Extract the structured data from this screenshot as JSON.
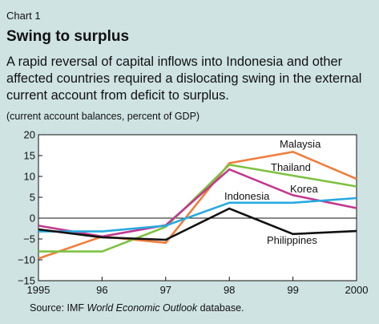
{
  "header": {
    "chart_number": "Chart 1",
    "title": "Swing to surplus",
    "subtitle": "A rapid reversal of capital inflows into Indonesia and other affected countries required a dislocating swing in the external current account from deficit to surplus.",
    "units": "(current account balances, percent of GDP)"
  },
  "source": {
    "prefix": "Source: IMF ",
    "publication": "World Economic Outlook",
    "suffix": " database."
  },
  "chart_data": {
    "type": "line",
    "title": "Swing to surplus",
    "ylabel": "(current account balances, percent of GDP)",
    "xlabel": "",
    "x": [
      "1995",
      "96",
      "97",
      "98",
      "99",
      "2000"
    ],
    "ylim": [
      -15,
      20
    ],
    "yticks": [
      -15,
      -10,
      -5,
      0,
      5,
      10,
      15,
      20
    ],
    "grid": false,
    "series": [
      {
        "name": "Malaysia",
        "color": "#f07d3c",
        "values": [
          -9.7,
          -4.4,
          -5.9,
          13.2,
          15.9,
          9.4
        ]
      },
      {
        "name": "Thailand",
        "color": "#7dc242",
        "values": [
          -8.0,
          -8.0,
          -2.1,
          12.8,
          10.2,
          7.6
        ]
      },
      {
        "name": "Korea",
        "color": "#c1388e",
        "values": [
          -1.8,
          -4.4,
          -1.7,
          11.7,
          5.5,
          2.4
        ]
      },
      {
        "name": "Indonesia",
        "color": "#27a9e1",
        "values": [
          -3.2,
          -3.2,
          -1.8,
          3.7,
          3.7,
          4.8
        ]
      },
      {
        "name": "Philippines",
        "color": "#111111",
        "values": [
          -2.7,
          -4.6,
          -5.2,
          2.3,
          -3.8,
          -3.1
        ]
      }
    ],
    "series_labels": [
      "Malaysia",
      "Thailand",
      "Korea",
      "Indonesia",
      "Philippines"
    ]
  }
}
